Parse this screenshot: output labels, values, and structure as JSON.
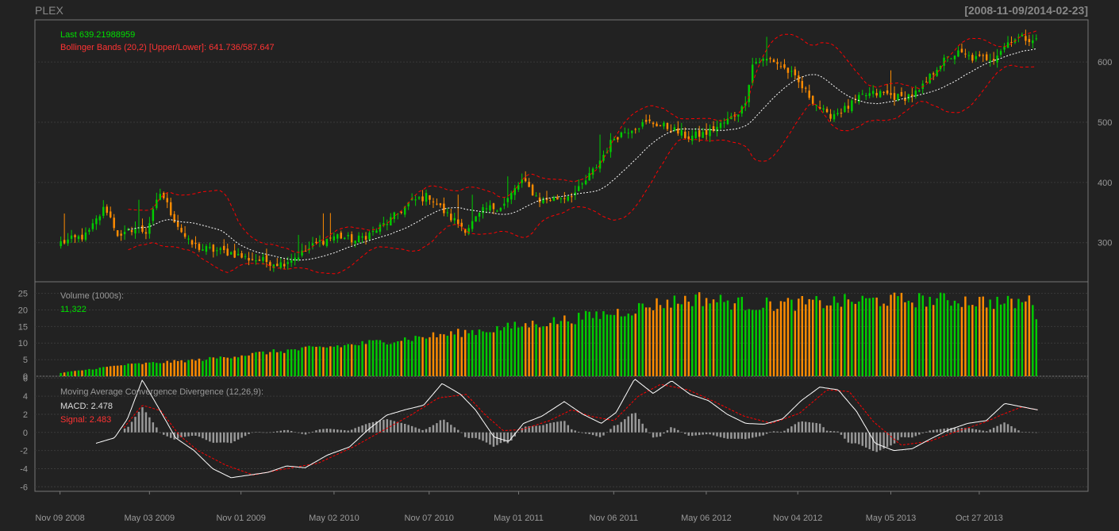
{
  "header": {
    "symbol": "PLEX",
    "date_range": "[2008-11-09/2014-02-23]"
  },
  "legend": {
    "last": "Last 639.21988959",
    "bollinger": "Bollinger Bands (20,2) [Upper/Lower]: 641.736/587.647",
    "volume_title": "Volume (1000s):",
    "volume_value": "11,322",
    "macd_title": "Moving Average Convergence Divergence (12,26,9):",
    "macd_value": "MACD: 2.478",
    "signal_value": "Signal: 2.483"
  },
  "colors": {
    "background": "#222222",
    "up": "#00cc00",
    "down": "#ff8c00",
    "band": "#ff0000",
    "ma": "#ffffff",
    "grid": "#3a3a3a",
    "frame": "#777777",
    "axis_text": "#999999",
    "hist": "#999999"
  },
  "chart_data": [
    {
      "type": "candlestick",
      "name": "price",
      "ylim": [
        235,
        670
      ],
      "yticks": [
        300,
        400,
        500,
        600
      ],
      "xlabels": [
        "Nov 09 2008",
        "May 03 2009",
        "Nov 01 2009",
        "May 02 2010",
        "Nov 07 2010",
        "May 01 2011",
        "Nov 06 2011",
        "May 06 2012",
        "Nov 04 2012",
        "May 05 2013",
        "Oct 27 2013"
      ],
      "close_path": [
        [
          2008.86,
          300
        ],
        [
          2009.0,
          312
        ],
        [
          2009.1,
          360
        ],
        [
          2009.18,
          306
        ],
        [
          2009.25,
          325
        ],
        [
          2009.32,
          318
        ],
        [
          2009.4,
          385
        ],
        [
          2009.47,
          340
        ],
        [
          2009.55,
          300
        ],
        [
          2009.62,
          290
        ],
        [
          2009.7,
          287
        ],
        [
          2009.78,
          283
        ],
        [
          2009.85,
          275
        ],
        [
          2009.95,
          270
        ],
        [
          2010.05,
          265
        ],
        [
          2010.15,
          280
        ],
        [
          2010.25,
          300
        ],
        [
          2010.35,
          312
        ],
        [
          2010.45,
          303
        ],
        [
          2010.55,
          318
        ],
        [
          2010.65,
          340
        ],
        [
          2010.75,
          368
        ],
        [
          2010.85,
          378
        ],
        [
          2010.95,
          345
        ],
        [
          2011.05,
          322
        ],
        [
          2011.15,
          355
        ],
        [
          2011.25,
          362
        ],
        [
          2011.35,
          403
        ],
        [
          2011.45,
          370
        ],
        [
          2011.55,
          374
        ],
        [
          2011.65,
          384
        ],
        [
          2011.75,
          425
        ],
        [
          2011.85,
          475
        ],
        [
          2011.95,
          492
        ],
        [
          2012.05,
          500
        ],
        [
          2012.15,
          490
        ],
        [
          2012.25,
          475
        ],
        [
          2012.35,
          482
        ],
        [
          2012.45,
          500
        ],
        [
          2012.55,
          525
        ],
        [
          2012.6,
          600
        ],
        [
          2012.7,
          605
        ],
        [
          2012.8,
          582
        ],
        [
          2012.9,
          545
        ],
        [
          2013.0,
          510
        ],
        [
          2013.1,
          522
        ],
        [
          2013.2,
          545
        ],
        [
          2013.3,
          548
        ],
        [
          2013.4,
          540
        ],
        [
          2013.5,
          550
        ],
        [
          2013.6,
          595
        ],
        [
          2013.7,
          615
        ],
        [
          2013.8,
          605
        ],
        [
          2013.9,
          608
        ],
        [
          2014.0,
          640
        ],
        [
          2014.14,
          639.22
        ]
      ]
    },
    {
      "type": "bar",
      "name": "volume",
      "ylim": [
        0,
        28.5
      ],
      "yticks": [
        0,
        5,
        10,
        15,
        20,
        25
      ],
      "path": [
        [
          2008.86,
          1.0
        ],
        [
          2009.2,
          3.5
        ],
        [
          2009.6,
          5.0
        ],
        [
          2010.0,
          7.5
        ],
        [
          2010.4,
          9.5
        ],
        [
          2010.8,
          12.0
        ],
        [
          2011.2,
          14.5
        ],
        [
          2011.6,
          17.5
        ],
        [
          2011.9,
          20.0
        ],
        [
          2012.1,
          22.5
        ],
        [
          2012.3,
          24.0
        ],
        [
          2012.6,
          22.0
        ],
        [
          2012.9,
          22.5
        ],
        [
          2013.3,
          23.5
        ],
        [
          2013.7,
          23.5
        ],
        [
          2014.0,
          22.5
        ],
        [
          2014.12,
          23.5
        ],
        [
          2014.14,
          11.322
        ]
      ]
    },
    {
      "type": "line",
      "name": "macd",
      "ylim": [
        -6.5,
        6.2
      ],
      "yticks": [
        -6,
        -4,
        -2,
        0,
        2,
        4,
        6
      ],
      "macd_path": [
        [
          2009.05,
          -1.2
        ],
        [
          2009.15,
          -0.6
        ],
        [
          2009.22,
          1.5
        ],
        [
          2009.3,
          5.8
        ],
        [
          2009.38,
          3.0
        ],
        [
          2009.48,
          -0.6
        ],
        [
          2009.58,
          -2.0
        ],
        [
          2009.68,
          -4.0
        ],
        [
          2009.78,
          -5.0
        ],
        [
          2009.88,
          -4.7
        ],
        [
          2009.98,
          -4.4
        ],
        [
          2010.08,
          -3.7
        ],
        [
          2010.18,
          -3.9
        ],
        [
          2010.3,
          -2.5
        ],
        [
          2010.42,
          -1.6
        ],
        [
          2010.52,
          0.3
        ],
        [
          2010.62,
          1.9
        ],
        [
          2010.72,
          2.5
        ],
        [
          2010.82,
          3.0
        ],
        [
          2010.92,
          5.4
        ],
        [
          2011.02,
          4.2
        ],
        [
          2011.1,
          2.5
        ],
        [
          2011.2,
          -0.5
        ],
        [
          2011.28,
          -1.0
        ],
        [
          2011.36,
          1.0
        ],
        [
          2011.46,
          1.8
        ],
        [
          2011.58,
          3.4
        ],
        [
          2011.68,
          2.0
        ],
        [
          2011.78,
          1.0
        ],
        [
          2011.86,
          2.2
        ],
        [
          2011.96,
          5.9
        ],
        [
          2012.06,
          4.3
        ],
        [
          2012.16,
          5.7
        ],
        [
          2012.26,
          4.2
        ],
        [
          2012.36,
          3.5
        ],
        [
          2012.46,
          2.0
        ],
        [
          2012.56,
          1.0
        ],
        [
          2012.66,
          0.9
        ],
        [
          2012.76,
          1.5
        ],
        [
          2012.86,
          3.5
        ],
        [
          2012.96,
          5.0
        ],
        [
          2013.06,
          4.7
        ],
        [
          2013.16,
          2.3
        ],
        [
          2013.26,
          -1.2
        ],
        [
          2013.36,
          -2.0
        ],
        [
          2013.46,
          -1.8
        ],
        [
          2013.56,
          -0.7
        ],
        [
          2013.66,
          0.3
        ],
        [
          2013.76,
          1.0
        ],
        [
          2013.86,
          1.3
        ],
        [
          2013.96,
          3.2
        ],
        [
          2014.06,
          2.8
        ],
        [
          2014.14,
          2.478
        ]
      ],
      "signal_path": [
        [
          2009.2,
          0.5
        ],
        [
          2009.3,
          3.0
        ],
        [
          2009.4,
          2.4
        ],
        [
          2009.5,
          -0.3
        ],
        [
          2009.6,
          -2.0
        ],
        [
          2009.75,
          -3.6
        ],
        [
          2009.9,
          -4.7
        ],
        [
          2010.05,
          -4.1
        ],
        [
          2010.25,
          -3.4
        ],
        [
          2010.45,
          -1.5
        ],
        [
          2010.6,
          0.2
        ],
        [
          2010.75,
          1.9
        ],
        [
          2010.9,
          3.8
        ],
        [
          2011.05,
          4.2
        ],
        [
          2011.15,
          2.0
        ],
        [
          2011.25,
          0.2
        ],
        [
          2011.35,
          0.3
        ],
        [
          2011.5,
          1.3
        ],
        [
          2011.62,
          2.5
        ],
        [
          2011.72,
          1.8
        ],
        [
          2011.85,
          1.3
        ],
        [
          2011.98,
          4.0
        ],
        [
          2012.1,
          5.3
        ],
        [
          2012.25,
          4.7
        ],
        [
          2012.4,
          3.3
        ],
        [
          2012.55,
          1.8
        ],
        [
          2012.7,
          1.0
        ],
        [
          2012.85,
          2.1
        ],
        [
          2013.0,
          4.7
        ],
        [
          2013.12,
          4.5
        ],
        [
          2013.25,
          1.2
        ],
        [
          2013.4,
          -1.4
        ],
        [
          2013.55,
          -1.0
        ],
        [
          2013.7,
          0.1
        ],
        [
          2013.85,
          1.1
        ],
        [
          2013.95,
          2.0
        ],
        [
          2014.05,
          2.8
        ],
        [
          2014.14,
          2.483
        ]
      ]
    }
  ]
}
